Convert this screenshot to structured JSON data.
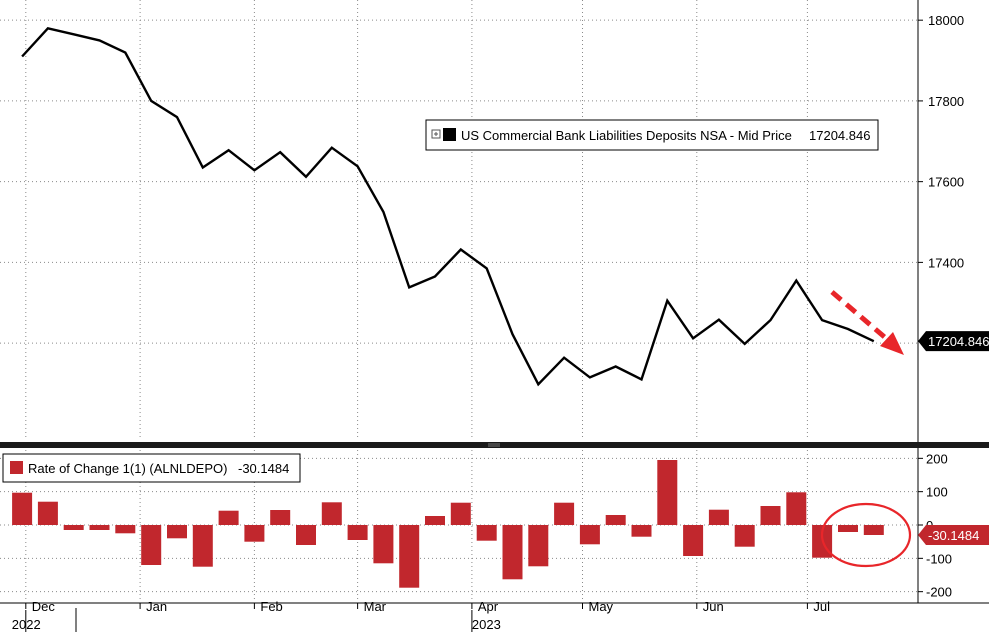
{
  "chart_data": [
    {
      "type": "line",
      "series": [
        {
          "name": "US Commercial Bank Liabilities Deposits NSA - Mid Price",
          "legend_value": "17204.846",
          "x": [
            "2022-11-30",
            "2022-12-07",
            "2022-12-14",
            "2022-12-21",
            "2022-12-28",
            "2023-01-04",
            "2023-01-11",
            "2023-01-18",
            "2023-01-25",
            "2023-02-01",
            "2023-02-08",
            "2023-02-15",
            "2023-02-22",
            "2023-03-01",
            "2023-03-08",
            "2023-03-15",
            "2023-03-22",
            "2023-03-29",
            "2023-04-05",
            "2023-04-12",
            "2023-04-19",
            "2023-04-26",
            "2023-05-03",
            "2023-05-10",
            "2023-05-17",
            "2023-05-24",
            "2023-05-31",
            "2023-06-07",
            "2023-06-14",
            "2023-06-21",
            "2023-06-28",
            "2023-07-05",
            "2023-07-12",
            "2023-07-19"
          ],
          "values": [
            17910,
            17980,
            17965,
            17950,
            17920,
            17800,
            17760,
            17635,
            17678,
            17628,
            17673,
            17612,
            17684,
            17638,
            17525,
            17338,
            17365,
            17432,
            17385,
            17222,
            17098,
            17164,
            17115,
            17142,
            17110,
            17305,
            17212,
            17258,
            17198,
            17257,
            17355,
            17257,
            17235,
            17204.846
          ]
        }
      ],
      "ylim": [
        16960,
        18050
      ],
      "yticks": [
        17400,
        17600,
        17800,
        18000
      ],
      "last_value_label": "17204.846",
      "grid": true
    },
    {
      "type": "bar",
      "series": [
        {
          "name": "Rate of Change 1(1) (ALNLDEPO)",
          "legend_value": "-30.1484",
          "x": [
            "2022-11-30",
            "2022-12-07",
            "2022-12-14",
            "2022-12-21",
            "2022-12-28",
            "2023-01-04",
            "2023-01-11",
            "2023-01-18",
            "2023-01-25",
            "2023-02-01",
            "2023-02-08",
            "2023-02-15",
            "2023-02-22",
            "2023-03-01",
            "2023-03-08",
            "2023-03-15",
            "2023-03-22",
            "2023-03-29",
            "2023-04-05",
            "2023-04-12",
            "2023-04-19",
            "2023-04-26",
            "2023-05-03",
            "2023-05-10",
            "2023-05-17",
            "2023-05-24",
            "2023-05-31",
            "2023-06-07",
            "2023-06-14",
            "2023-06-21",
            "2023-06-28",
            "2023-07-05",
            "2023-07-12",
            "2023-07-19"
          ],
          "values": [
            97,
            70,
            -15,
            -15,
            -25,
            -120,
            -40,
            -125,
            43,
            -50,
            45,
            -60,
            68,
            -45,
            -115,
            -188,
            27,
            67,
            -47,
            -163,
            -124,
            67,
            -58,
            30,
            -35,
            195,
            -93,
            46,
            -65,
            57,
            98,
            -98,
            -21,
            -30.1484
          ]
        }
      ],
      "ylim": [
        -225,
        225
      ],
      "yticks": [
        -200,
        -100,
        0,
        100,
        200
      ],
      "last_value_label": "-30.1484",
      "grid": true
    }
  ],
  "x_axis": {
    "months": [
      {
        "label": "Dec",
        "date": "2022-12-01"
      },
      {
        "label": "Jan",
        "date": "2023-01-01"
      },
      {
        "label": "Feb",
        "date": "2023-02-01"
      },
      {
        "label": "Mar",
        "date": "2023-03-01"
      },
      {
        "label": "Apr",
        "date": "2023-04-01"
      },
      {
        "label": "May",
        "date": "2023-05-01"
      },
      {
        "label": "Jun",
        "date": "2023-06-01"
      },
      {
        "label": "Jul",
        "date": "2023-07-01"
      }
    ],
    "years": [
      {
        "label": "2022",
        "date": "2022-12-01"
      },
      {
        "label": "2023",
        "date": "2023-04-01"
      }
    ]
  },
  "colors": {
    "line": "#000000",
    "bar": "#c1272d",
    "annotation": "#e8262a",
    "grid": "#8a8a8a",
    "value_box_top": "#000000",
    "value_box_bottom": "#c1272d"
  }
}
